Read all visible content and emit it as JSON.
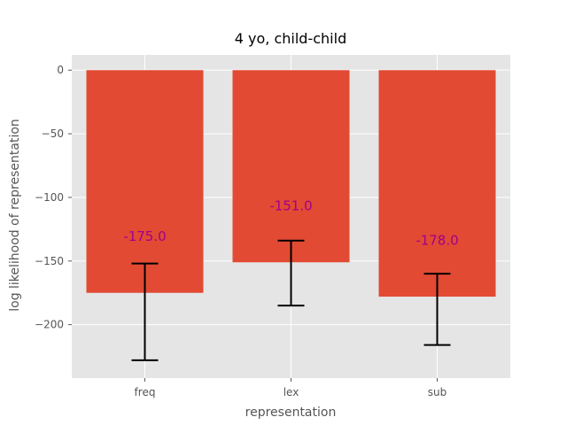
{
  "chart_data": {
    "type": "bar",
    "title": "4 yo, child-child",
    "xlabel": "representation",
    "ylabel": "log likelihood of representation",
    "categories": [
      "freq",
      "lex",
      "sub"
    ],
    "values": [
      -175.0,
      -151.0,
      -178.0
    ],
    "value_labels": [
      "-175.0",
      "-151.0",
      "-178.0"
    ],
    "error_bars": [
      {
        "low": -228,
        "high": -152
      },
      {
        "low": -185,
        "high": -134
      },
      {
        "low": -216,
        "high": -160
      }
    ],
    "ylim": [
      -242,
      12
    ],
    "yticks": [
      0,
      -50,
      -100,
      -150,
      -200
    ],
    "ytick_labels": [
      "0",
      "−50",
      "−100",
      "−150",
      "−200"
    ],
    "grid": true,
    "legend": "none",
    "colors": {
      "bar": "#e24a33",
      "plot_background": "#e5e5e5",
      "grid": "#ffffff",
      "error_bar": "#000000",
      "data_label": "#a0008a"
    }
  }
}
